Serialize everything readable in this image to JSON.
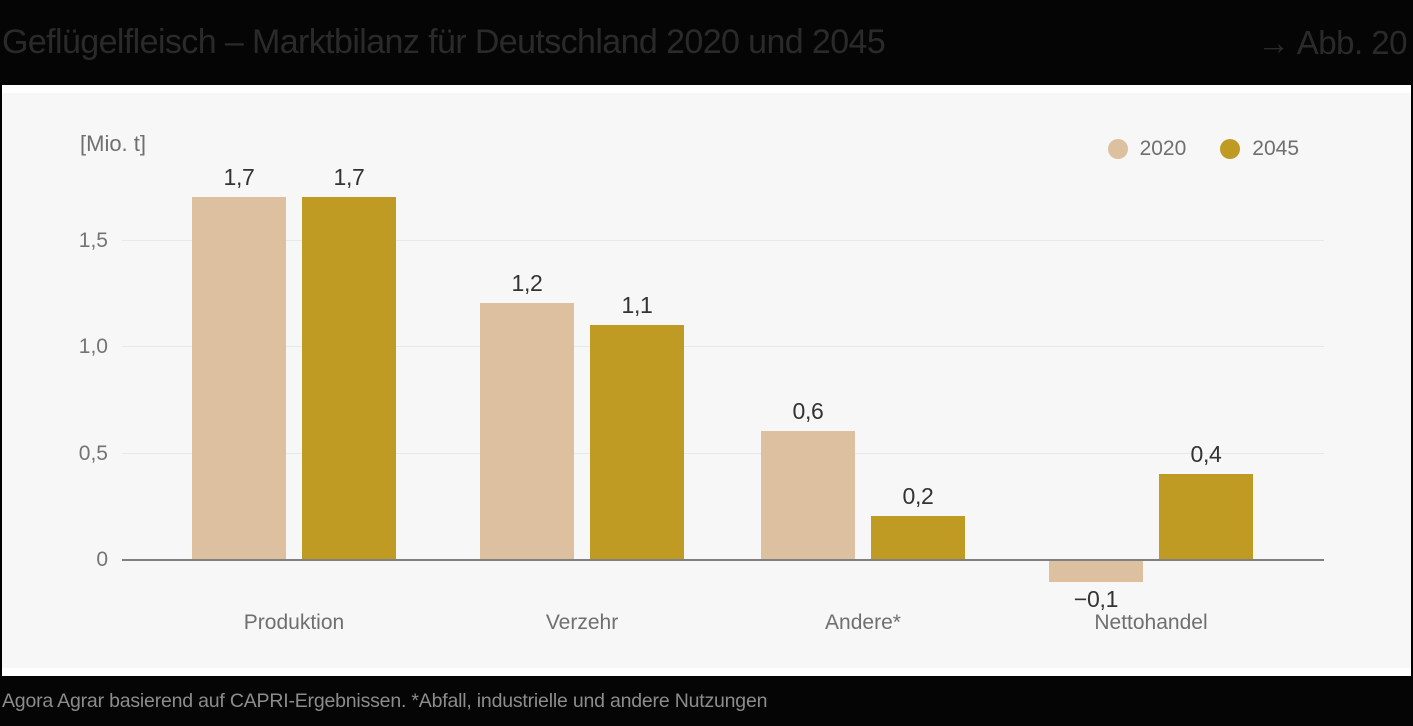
{
  "header": {
    "title": "Geflügelfleisch – Marktbilanz für Deutschland 2020 und 2045",
    "figure_ref": "→ Abb. 20"
  },
  "chart_data": {
    "type": "bar",
    "title": "Geflügelfleisch – Marktbilanz für Deutschland 2020 und 2045",
    "unit_label": "[Mio. t]",
    "categories": [
      "Produktion",
      "Verzehr",
      "Andere*",
      "Nettohandel"
    ],
    "series": [
      {
        "name": "2020",
        "color": "#ddc09f",
        "values": [
          1.7,
          1.2,
          0.6,
          -0.1
        ],
        "value_labels": [
          "1,7",
          "1,2",
          "0,6",
          "−0,1"
        ]
      },
      {
        "name": "2045",
        "color": "#c09b23",
        "values": [
          1.7,
          1.1,
          0.2,
          0.4
        ],
        "value_labels": [
          "1,7",
          "1,1",
          "0,2",
          "0,4"
        ]
      }
    ],
    "y_ticks": [
      {
        "value": 0,
        "label": "0"
      },
      {
        "value": 0.5,
        "label": "0,5"
      },
      {
        "value": 1.0,
        "label": "1,0"
      },
      {
        "value": 1.5,
        "label": "1,5"
      }
    ],
    "ylim": [
      -0.2,
      1.9
    ],
    "grid": true,
    "legend_position": "top-right"
  },
  "footer": {
    "source": "Agora Agrar basierend auf CAPRI-Ergebnissen. *Abfall, industrielle und andere Nutzungen"
  },
  "colors": {
    "header_bg": "#050505",
    "header_text": "#2a2a2a",
    "panel_bg": "#f7f7f7",
    "series_2020": "#ddc09f",
    "series_2045": "#c09b23",
    "axis_text": "#6f6f6f",
    "value_label_text": "#333333",
    "zero_line": "#808080",
    "gridline": "#e8e8e8",
    "footer_text": "#8c8c8c"
  }
}
